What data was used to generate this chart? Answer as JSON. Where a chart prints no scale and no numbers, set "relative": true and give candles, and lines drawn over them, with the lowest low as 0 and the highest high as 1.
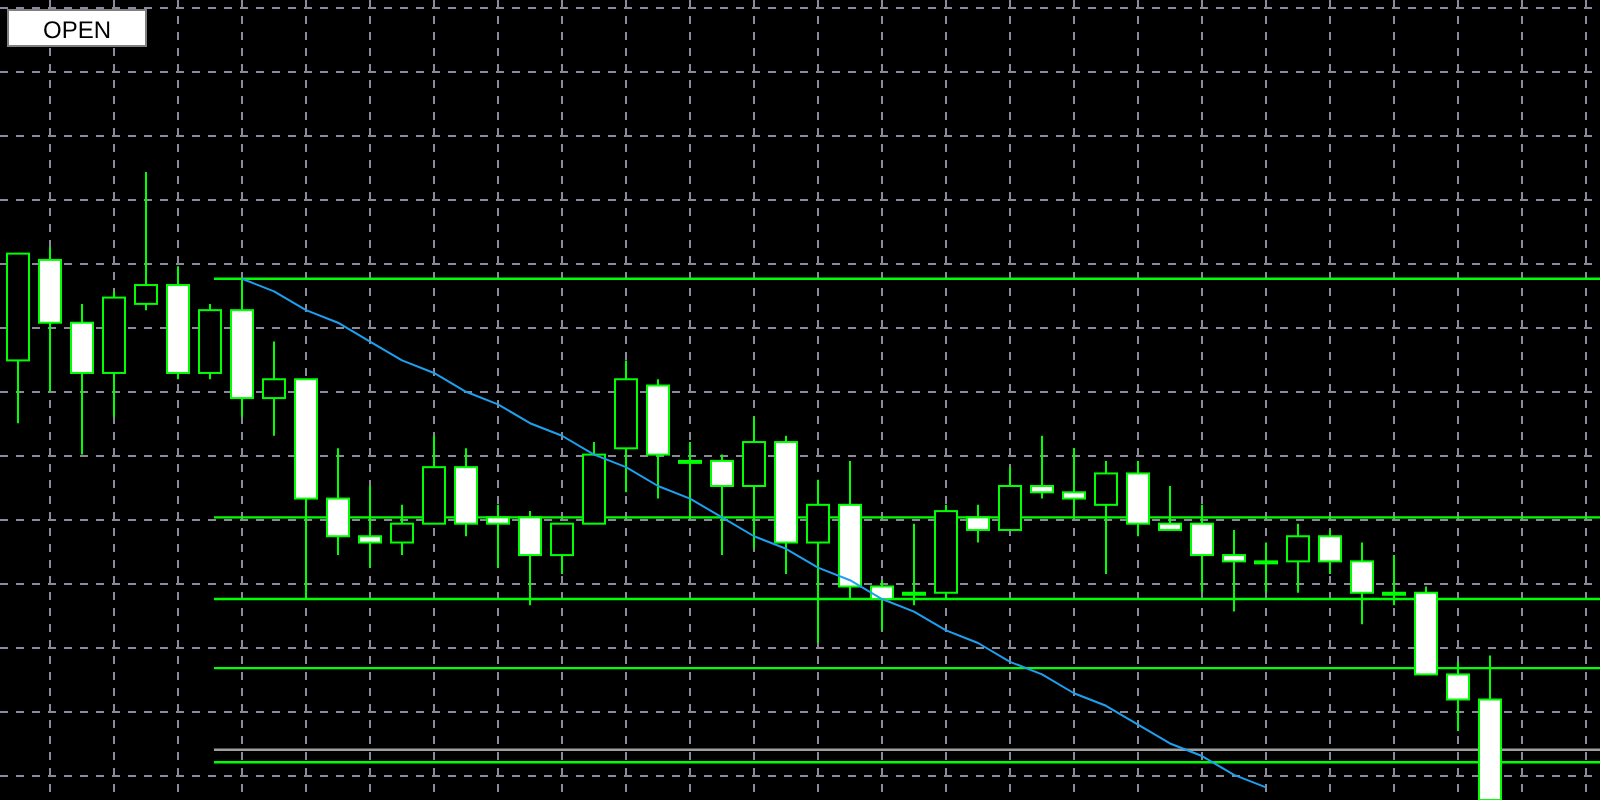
{
  "chart_data": {
    "type": "candlestick",
    "relative": true,
    "grid": true,
    "color": "#00ff00",
    "categories": [
      null,
      null,
      null,
      null,
      null,
      null,
      null,
      null,
      null,
      null,
      null,
      null,
      null,
      null,
      null,
      null,
      null,
      null,
      null,
      null,
      null,
      null,
      null,
      null,
      null,
      null,
      null,
      null,
      null,
      null,
      null,
      null,
      null,
      null,
      null,
      null,
      null,
      null,
      null,
      null,
      null,
      null,
      null,
      null,
      null,
      null,
      null
    ],
    "ohlc": [
      [
        0.7,
        0.87,
        0.6,
        0.87
      ],
      [
        0.86,
        0.88,
        0.65,
        0.76
      ],
      [
        0.76,
        0.79,
        0.55,
        0.68
      ],
      [
        0.68,
        0.81,
        0.61,
        0.8
      ],
      [
        0.79,
        1.0,
        0.78,
        0.82
      ],
      [
        0.82,
        0.85,
        0.67,
        0.68
      ],
      [
        0.68,
        0.79,
        0.67,
        0.78
      ],
      [
        0.78,
        0.83,
        0.61,
        0.64
      ],
      [
        0.64,
        0.73,
        0.58,
        0.67
      ],
      [
        0.67,
        0.67,
        0.32,
        0.48
      ],
      [
        0.48,
        0.56,
        0.39,
        0.42
      ],
      [
        0.42,
        0.5,
        0.37,
        0.41
      ],
      [
        0.41,
        0.47,
        0.39,
        0.44
      ],
      [
        0.44,
        0.58,
        0.44,
        0.53
      ],
      [
        0.53,
        0.56,
        0.42,
        0.44
      ],
      [
        0.45,
        0.47,
        0.37,
        0.44
      ],
      [
        0.45,
        0.46,
        0.31,
        0.39
      ],
      [
        0.39,
        0.44,
        0.36,
        0.44
      ],
      [
        0.44,
        0.57,
        0.44,
        0.55
      ],
      [
        0.56,
        0.7,
        0.49,
        0.67
      ],
      [
        0.66,
        0.67,
        0.48,
        0.55
      ],
      [
        0.54,
        0.57,
        0.45,
        0.54
      ],
      [
        0.54,
        0.55,
        0.39,
        0.5
      ],
      [
        0.5,
        0.61,
        0.4,
        0.57
      ],
      [
        0.57,
        0.58,
        0.36,
        0.41
      ],
      [
        0.41,
        0.51,
        0.25,
        0.47
      ],
      [
        0.47,
        0.54,
        0.32,
        0.34
      ],
      [
        0.34,
        0.35,
        0.27,
        0.32
      ],
      [
        0.33,
        0.44,
        0.31,
        0.33
      ],
      [
        0.33,
        0.47,
        0.32,
        0.46
      ],
      [
        0.45,
        0.47,
        0.41,
        0.43
      ],
      [
        0.43,
        0.53,
        0.43,
        0.5
      ],
      [
        0.5,
        0.58,
        0.48,
        0.49
      ],
      [
        0.49,
        0.56,
        0.45,
        0.48
      ],
      [
        0.47,
        0.54,
        0.36,
        0.52
      ],
      [
        0.52,
        0.54,
        0.42,
        0.44
      ],
      [
        0.44,
        0.5,
        0.43,
        0.43
      ],
      [
        0.44,
        0.47,
        0.33,
        0.39
      ],
      [
        0.39,
        0.43,
        0.3,
        0.38
      ],
      [
        0.38,
        0.41,
        0.33,
        0.38
      ],
      [
        0.38,
        0.44,
        0.33,
        0.42
      ],
      [
        0.42,
        0.43,
        0.36,
        0.38
      ],
      [
        0.38,
        0.41,
        0.28,
        0.33
      ],
      [
        0.33,
        0.39,
        0.31,
        0.33
      ],
      [
        0.33,
        0.34,
        0.2,
        0.2
      ],
      [
        0.2,
        0.22,
        0.11,
        0.16
      ],
      [
        0.16,
        0.23,
        0,
        0
      ]
    ],
    "series": [
      {
        "type": "line",
        "color": "#1ea0f0",
        "values": [
          null,
          null,
          null,
          null,
          null,
          null,
          null,
          0.83,
          0.81,
          0.78,
          0.76,
          0.73,
          0.7,
          0.68,
          0.65,
          0.63,
          0.6,
          0.58,
          0.55,
          0.53,
          0.5,
          0.48,
          0.45,
          0.42,
          0.4,
          0.37,
          0.35,
          0.32,
          0.3,
          0.27,
          0.25,
          0.22,
          0.2,
          0.17,
          0.15,
          0.12,
          0.09,
          0.07,
          0.04,
          0.02,
          null,
          null,
          null,
          null,
          null,
          null,
          null
        ]
      }
    ],
    "ref_lines": [
      {
        "axis": "y",
        "value": 0.83,
        "color": "#00ff00"
      },
      {
        "axis": "y",
        "value": 0.45,
        "color": "#00ff00"
      },
      {
        "axis": "y",
        "value": 0.32,
        "color": "#00ff00"
      },
      {
        "axis": "y",
        "value": 0.21,
        "color": "#00ff00"
      },
      {
        "axis": "y",
        "value": 0.08,
        "color": "#a0a0a0"
      },
      {
        "axis": "y",
        "value": 0.06,
        "color": "#00ff00"
      }
    ],
    "annotations": [
      "OPEN"
    ]
  }
}
